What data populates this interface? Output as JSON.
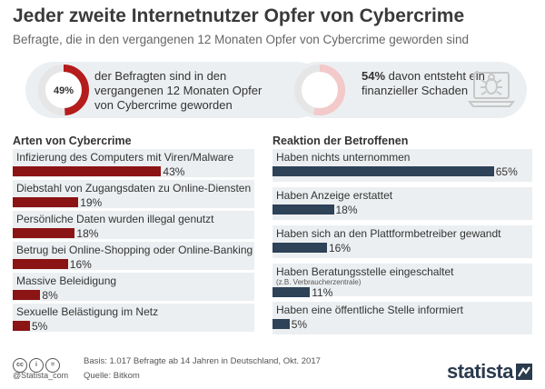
{
  "header": {
    "title": "Jeder zweite Internetnutzer Opfer von Cybercrime",
    "subtitle": "Befragte, die in den vergangenen 12 Monaten Opfer von Cybercrime geworden sind"
  },
  "summary": {
    "stat1": {
      "value_label": "49%",
      "value": 49,
      "text": "der Befragten sind in den vergangenen 12 Monaten Opfer von Cybercrime geworden"
    },
    "stat2": {
      "value_label": "54%",
      "value": 54,
      "text": "davon entsteht ein finanzieller Schaden"
    },
    "icon": "laptop-virus-icon"
  },
  "chart_data": [
    {
      "type": "bar",
      "title": "Arten von Cybercrime",
      "categories": [
        "Infizierung des Computers mit Viren/Malware",
        "Diebstahl von Zugangsdaten zu Online-Diensten",
        "Persönliche Daten wurden illegal genutzt",
        "Betrug bei Online-Shopping oder Online-Banking",
        "Massive Beleidigung",
        "Sexuelle Belästigung im Netz"
      ],
      "values": [
        43,
        19,
        18,
        16,
        8,
        5
      ],
      "value_labels": [
        "43%",
        "19%",
        "18%",
        "16%",
        "8%",
        "5%"
      ],
      "unit": "%",
      "color": "#8b1414",
      "xlim": [
        0,
        100
      ]
    },
    {
      "type": "bar",
      "title": "Reaktion der Betroffenen",
      "categories": [
        "Haben nichts unternommen",
        "Haben Anzeige erstattet",
        "Haben sich an den Plattformbetreiber gewandt",
        "Haben Beratungsstelle eingeschaltet",
        "Haben eine öffentliche Stelle informiert"
      ],
      "sublabels": [
        "",
        "",
        "",
        "(z.B. Verbraucherzentrale)",
        ""
      ],
      "values": [
        65,
        18,
        16,
        11,
        5
      ],
      "value_labels": [
        "65%",
        "18%",
        "16%",
        "11%",
        "5%"
      ],
      "unit": "%",
      "color": "#2e4258",
      "xlim": [
        0,
        100
      ]
    }
  ],
  "footer": {
    "handle": "@Statista_com",
    "basis": "Basis: 1.017 Befragte ab 14 Jahren in Deutschland, Okt. 2017",
    "source": "Quelle: Bitkom",
    "brand": "statista",
    "license_icons": [
      "cc-icon",
      "person-icon",
      "equals-icon"
    ]
  }
}
